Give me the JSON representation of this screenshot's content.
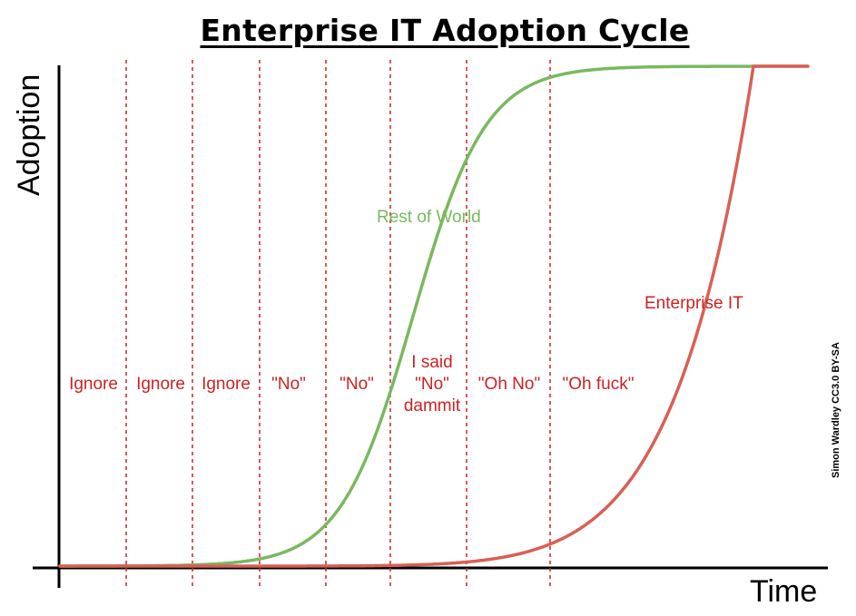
{
  "title": "Enterprise IT Adoption Cycle",
  "axes": {
    "ylabel": "Adoption",
    "xlabel": "Time"
  },
  "curves": [
    {
      "name": "Rest of World",
      "color": "#7ab860"
    },
    {
      "name": "Enterprise IT",
      "color": "#d95f55"
    }
  ],
  "phases": [
    "Ignore",
    "Ignore",
    "Ignore",
    "\"No\"",
    "\"No\"",
    "I said\n\"No\"\ndammit",
    "\"Oh No\"",
    "\"Oh fuck\""
  ],
  "phase_color": "#cc2222",
  "credit": "Simon Wardley CC3.0 BY-SA"
}
